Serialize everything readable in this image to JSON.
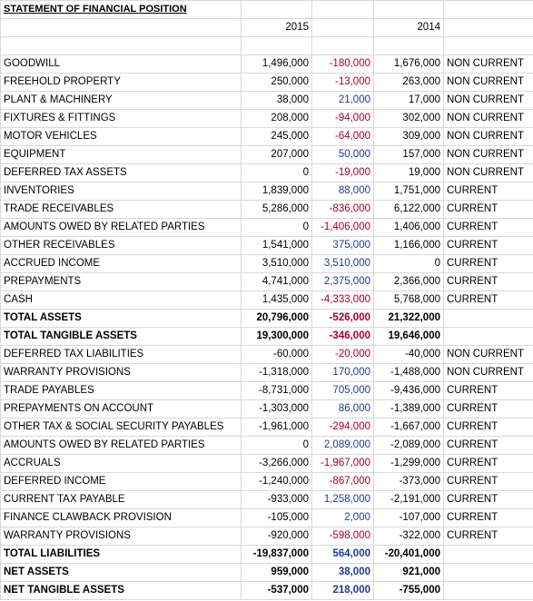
{
  "title": "STATEMENT OF FINANCIAL POSITION",
  "columns": [
    "2015",
    "2014"
  ],
  "negative_color": "#a50021",
  "positive_color": "#1f3a93",
  "rows": [
    {
      "label": "GOODWILL",
      "y2015": "1,496,000",
      "change": "-180,000",
      "y2014": "1,676,000",
      "class": "NON CURRENT"
    },
    {
      "label": "FREEHOLD PROPERTY",
      "y2015": "250,000",
      "change": "-13,000",
      "y2014": "263,000",
      "class": "NON CURRENT"
    },
    {
      "label": "PLANT & MACHINERY",
      "y2015": "38,000",
      "change": "21,000",
      "y2014": "17,000",
      "class": "NON CURRENT"
    },
    {
      "label": "FIXTURES & FITTINGS",
      "y2015": "208,000",
      "change": "-94,000",
      "y2014": "302,000",
      "class": "NON CURRENT"
    },
    {
      "label": "MOTOR VEHICLES",
      "y2015": "245,000",
      "change": "-64,000",
      "y2014": "309,000",
      "class": "NON CURRENT"
    },
    {
      "label": "EQUIPMENT",
      "y2015": "207,000",
      "change": "50,000",
      "y2014": "157,000",
      "class": "NON CURRENT"
    },
    {
      "label": "DEFERRED TAX ASSETS",
      "y2015": "0",
      "change": "-19,000",
      "y2014": "19,000",
      "class": "NON CURRENT"
    },
    {
      "label": "INVENTORIES",
      "y2015": "1,839,000",
      "change": "88,000",
      "y2014": "1,751,000",
      "class": "CURRENT"
    },
    {
      "label": "TRADE RECEIVABLES",
      "y2015": "5,286,000",
      "change": "-836,000",
      "y2014": "6,122,000",
      "class": "CURRENT"
    },
    {
      "label": "AMOUNTS OWED BY RELATED PARTIES",
      "y2015": "0",
      "change": "-1,406,000",
      "y2014": "1,406,000",
      "class": "CURRENT"
    },
    {
      "label": "OTHER RECEIVABLES",
      "y2015": "1,541,000",
      "change": "375,000",
      "y2014": "1,166,000",
      "class": "CURRENT"
    },
    {
      "label": "ACCRUED INCOME",
      "y2015": "3,510,000",
      "change": "3,510,000",
      "y2014": "0",
      "class": "CURRENT"
    },
    {
      "label": "PREPAYMENTS",
      "y2015": "4,741,000",
      "change": "2,375,000",
      "y2014": "2,366,000",
      "class": "CURRENT"
    },
    {
      "label": "CASH",
      "y2015": "1,435,000",
      "change": "-4,333,000",
      "y2014": "5,768,000",
      "class": "CURRENT"
    },
    {
      "label": "TOTAL ASSETS",
      "y2015": "20,796,000",
      "change": "-526,000",
      "y2014": "21,322,000",
      "bold": true
    },
    {
      "label": "TOTAL TANGIBLE ASSETS",
      "y2015": "19,300,000",
      "change": "-346,000",
      "y2014": "19,646,000",
      "bold": true
    },
    {
      "label": "DEFERRED TAX LIABILITIES",
      "y2015": "-60,000",
      "change": "-20,000",
      "y2014": "-40,000",
      "class": "NON CURRENT"
    },
    {
      "label": "WARRANTY PROVISIONS",
      "y2015": "-1,318,000",
      "change": "170,000",
      "y2014": "-1,488,000",
      "class": "NON CURRENT"
    },
    {
      "label": "TRADE PAYABLES",
      "y2015": "-8,731,000",
      "change": "705,000",
      "y2014": "-9,436,000",
      "class": "CURRENT"
    },
    {
      "label": "PREPAYMENTS ON ACCOUNT",
      "y2015": "-1,303,000",
      "change": "86,000",
      "y2014": "-1,389,000",
      "class": "CURRENT"
    },
    {
      "label": "OTHER TAX & SOCIAL SECURITY PAYABLES",
      "y2015": "-1,961,000",
      "change": "-294,000",
      "y2014": "-1,667,000",
      "class": "CURRENT"
    },
    {
      "label": "AMOUNTS OWED BY RELATED PARTIES",
      "y2015": "0",
      "change": "2,089,000",
      "y2014": "-2,089,000",
      "class": "CURRENT"
    },
    {
      "label": "ACCRUALS",
      "y2015": "-3,266,000",
      "change": "-1,967,000",
      "y2014": "-1,299,000",
      "class": "CURRENT"
    },
    {
      "label": "DEFERRED INCOME",
      "y2015": "-1,240,000",
      "change": "-867,000",
      "y2014": "-373,000",
      "class": "CURRENT"
    },
    {
      "label": "CURRENT TAX PAYABLE",
      "y2015": "-933,000",
      "change": "1,258,000",
      "y2014": "-2,191,000",
      "class": "CURRENT"
    },
    {
      "label": "FINANCE CLAWBACK PROVISION",
      "y2015": "-105,000",
      "change": "2,000",
      "y2014": "-107,000",
      "class": "CURRENT"
    },
    {
      "label": "WARRANTY PROVISIONS",
      "y2015": "-920,000",
      "change": "-598,000",
      "y2014": "-322,000",
      "class": "CURRENT"
    },
    {
      "label": "TOTAL LIABILITIES",
      "y2015": "-19,837,000",
      "change": "564,000",
      "y2014": "-20,401,000",
      "bold": true
    },
    {
      "label": "NET ASSETS",
      "y2015": "959,000",
      "change": "38,000",
      "y2014": "921,000",
      "bold": true
    },
    {
      "label": "NET TANGIBLE ASSETS",
      "y2015": "-537,000",
      "change": "218,000",
      "y2014": "-755,000",
      "bold": true
    }
  ]
}
